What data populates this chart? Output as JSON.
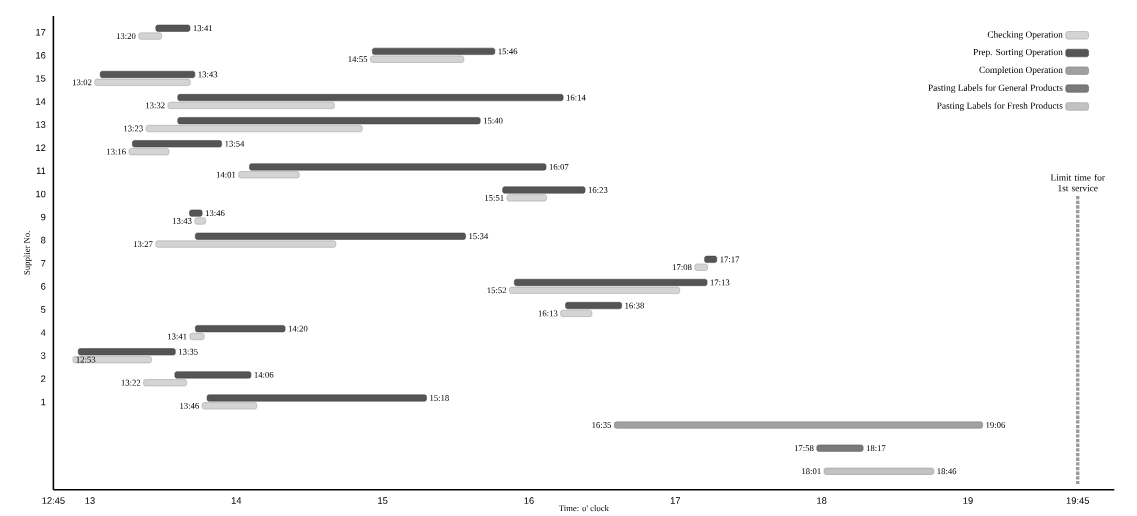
{
  "chart_data": {
    "type": "bar",
    "orientation": "horizontal",
    "xlabel": "Time: o' clock",
    "ylabel": "Supplier No.",
    "categories": [
      "17",
      "16",
      "15",
      "14",
      "13",
      "12",
      "11",
      "10",
      "9",
      "8",
      "7",
      "6",
      "5",
      "4",
      "3",
      "2",
      "1",
      null,
      null,
      null
    ],
    "series": [
      {
        "name": "Checking Operation",
        "color": "#d4d4d4",
        "base": [
          13.3333,
          14.9167,
          13.0333,
          13.5333,
          13.3833,
          13.2667,
          14.0167,
          15.85,
          13.7167,
          13.45,
          17.1333,
          15.8667,
          16.2167,
          13.6833,
          12.8833,
          13.3667,
          13.7667,
          null,
          null,
          null
        ],
        "values": [
          0.1567,
          0.6383,
          0.6517,
          1.1367,
          1.4767,
          0.2733,
          0.4133,
          0.27,
          0.0733,
          1.23,
          0.0867,
          1.1633,
          0.2133,
          0.0967,
          0.5367,
          0.2933,
          0.3733,
          null,
          null,
          null
        ]
      },
      {
        "name": "Prep. Sorting Operation",
        "color": "#555555",
        "base": [
          13.45,
          14.93,
          13.07,
          13.6,
          13.6,
          13.29,
          14.09,
          15.82,
          13.68,
          13.72,
          17.2,
          15.9,
          16.25,
          13.72,
          12.92,
          13.58,
          13.8,
          null,
          null,
          null
        ],
        "values": [
          0.2333,
          0.8367,
          0.6467,
          2.6333,
          2.0667,
          0.61,
          2.0267,
          0.5633,
          0.0867,
          1.8467,
          0.0833,
          1.3167,
          0.3833,
          0.6133,
          0.6633,
          0.52,
          1.5,
          null,
          null,
          null
        ]
      },
      {
        "name": "Completion Operation",
        "color": "#a0a0a0",
        "base": [
          null,
          null,
          null,
          null,
          null,
          null,
          null,
          null,
          null,
          null,
          null,
          null,
          null,
          null,
          null,
          null,
          null,
          16.5833,
          null,
          null
        ],
        "values": [
          null,
          null,
          null,
          null,
          null,
          null,
          null,
          null,
          null,
          null,
          null,
          null,
          null,
          null,
          null,
          null,
          null,
          2.5167,
          null,
          null
        ]
      },
      {
        "name": "Pasting Labels for General Products",
        "color": "#7a7a7a",
        "base": [
          null,
          null,
          null,
          null,
          null,
          null,
          null,
          null,
          null,
          null,
          null,
          null,
          null,
          null,
          null,
          null,
          null,
          null,
          17.9667,
          null
        ],
        "values": [
          null,
          null,
          null,
          null,
          null,
          null,
          null,
          null,
          null,
          null,
          null,
          null,
          null,
          null,
          null,
          null,
          null,
          null,
          0.3167,
          null
        ]
      },
      {
        "name": "Pasting Labels for Fresh Products",
        "color": "#c2c2c2",
        "base": [
          null,
          null,
          null,
          null,
          null,
          null,
          null,
          null,
          null,
          null,
          null,
          null,
          null,
          null,
          null,
          null,
          null,
          null,
          null,
          18.0167
        ],
        "values": [
          null,
          null,
          null,
          null,
          null,
          null,
          null,
          null,
          null,
          null,
          null,
          null,
          null,
          null,
          null,
          null,
          null,
          null,
          null,
          0.75
        ]
      }
    ],
    "xlim": [
      12.75,
      20.0
    ],
    "xticks": [
      {
        "value": 12.75,
        "label": "12:45"
      },
      13,
      14,
      15,
      16,
      17,
      18,
      19,
      {
        "value": 19.75,
        "label": "19:45"
      }
    ],
    "ref_lines": [
      {
        "axis": "x",
        "value": 19.75,
        "label": "Limit time for 1st service",
        "color": "#999999",
        "line_style": "dotted"
      }
    ],
    "legend": "top right",
    "annotations": [
      {
        "text": "13:20",
        "x": 13.3333,
        "y": "17"
      },
      {
        "text": "13:41",
        "x": 13.6833,
        "y": "17"
      },
      {
        "text": "14:55",
        "x": 14.9167,
        "y": "16"
      },
      {
        "text": "15:46",
        "x": 15.7667,
        "y": "16"
      },
      {
        "text": "13:02",
        "x": 13.0333,
        "y": "15"
      },
      {
        "text": "13:43",
        "x": 13.7167,
        "y": "15"
      },
      {
        "text": "13:32",
        "x": 13.5333,
        "y": "14"
      },
      {
        "text": "16:14",
        "x": 16.2333,
        "y": "14"
      },
      {
        "text": "13:23",
        "x": 13.3833,
        "y": "13"
      },
      {
        "text": "15:40",
        "x": 15.6667,
        "y": "13"
      },
      {
        "text": "13:16",
        "x": 13.2667,
        "y": "12"
      },
      {
        "text": "13:54",
        "x": 13.9,
        "y": "12"
      },
      {
        "text": "14:01",
        "x": 14.0167,
        "y": "11"
      },
      {
        "text": "16:07",
        "x": 16.1167,
        "y": "11"
      },
      {
        "text": "15:51",
        "x": 15.85,
        "y": "10"
      },
      {
        "text": "16:23",
        "x": 16.3833,
        "y": "10"
      },
      {
        "text": "13:43",
        "x": 13.7167,
        "y": "9"
      },
      {
        "text": "13:46",
        "x": 13.7667,
        "y": "9"
      },
      {
        "text": "13:27",
        "x": 13.45,
        "y": "8"
      },
      {
        "text": "15:34",
        "x": 15.5667,
        "y": "8"
      },
      {
        "text": "17:08",
        "x": 17.1333,
        "y": "7"
      },
      {
        "text": "17:17",
        "x": 17.2833,
        "y": "7"
      },
      {
        "text": "15:52",
        "x": 15.8667,
        "y": "6"
      },
      {
        "text": "17:13",
        "x": 17.2167,
        "y": "6"
      },
      {
        "text": "16:13",
        "x": 16.2167,
        "y": "5"
      },
      {
        "text": "16:38",
        "x": 16.6333,
        "y": "5"
      },
      {
        "text": "13:41",
        "x": 13.6833,
        "y": "4"
      },
      {
        "text": "14:20",
        "x": 14.3333,
        "y": "4"
      },
      {
        "text": "12:53",
        "x": 12.8833,
        "y": "3"
      },
      {
        "text": "13:35",
        "x": 13.5833,
        "y": "3"
      },
      {
        "text": "13:22",
        "x": 13.3667,
        "y": "2"
      },
      {
        "text": "14:06",
        "x": 14.1,
        "y": "2"
      },
      {
        "text": "13:46",
        "x": 13.7667,
        "y": "1"
      },
      {
        "text": "15:18",
        "x": 15.3,
        "y": "1"
      },
      {
        "text": "16:35",
        "x": 16.5833
      },
      {
        "text": "19:06",
        "x": 19.1
      },
      {
        "text": "17:58",
        "x": 17.9667
      },
      {
        "text": "18:17",
        "x": 18.2833
      },
      {
        "text": "18:01",
        "x": 18.0167
      },
      {
        "text": "18:46",
        "x": 18.7667
      }
    ]
  }
}
